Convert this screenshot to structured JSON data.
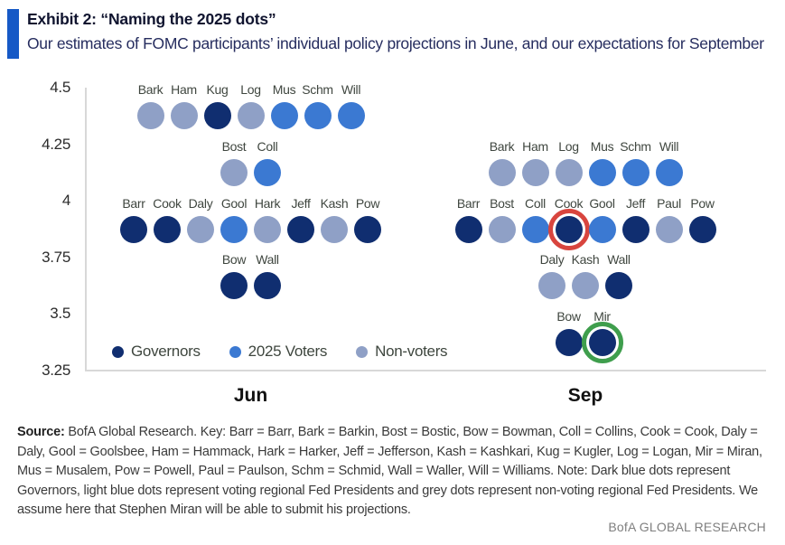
{
  "header": {
    "exhibit_title": "Exhibit 2: “Naming the 2025 dots”",
    "subtitle": "Our estimates of FOMC participants’ individual policy projections in June, and our expectations for September"
  },
  "chart_data": {
    "type": "scatter",
    "title": "Exhibit 2: “Naming the 2025 dots”",
    "ylabel": "",
    "xlabel": "",
    "ylim": [
      3.25,
      4.5
    ],
    "y_ticks": [
      {
        "value": 4.5,
        "label": "4.5"
      },
      {
        "value": 4.25,
        "label": "4.25"
      },
      {
        "value": 4,
        "label": "4"
      },
      {
        "value": 3.75,
        "label": "3.75"
      },
      {
        "value": 3.5,
        "label": "3.5"
      },
      {
        "value": 3.25,
        "label": "3.25"
      }
    ],
    "colors": {
      "governor": "#102e70",
      "voter": "#3b79d2",
      "nonvoter": "#8fa0c6",
      "ring_red": "#d8453e",
      "ring_green": "#3f9e4d"
    },
    "groups": [
      {
        "label": "Jun",
        "rows": [
          {
            "y": 4.375,
            "dots": [
              {
                "name": "Bark",
                "type": "nonvoter"
              },
              {
                "name": "Ham",
                "type": "nonvoter"
              },
              {
                "name": "Kug",
                "type": "governor"
              },
              {
                "name": "Log",
                "type": "nonvoter"
              },
              {
                "name": "Mus",
                "type": "voter"
              },
              {
                "name": "Schm",
                "type": "voter"
              },
              {
                "name": "Will",
                "type": "voter"
              }
            ]
          },
          {
            "y": 4.125,
            "dots": [
              {
                "name": "Bost",
                "type": "nonvoter"
              },
              {
                "name": "Coll",
                "type": "voter"
              }
            ]
          },
          {
            "y": 3.875,
            "dots": [
              {
                "name": "Barr",
                "type": "governor"
              },
              {
                "name": "Cook",
                "type": "governor"
              },
              {
                "name": "Daly",
                "type": "nonvoter"
              },
              {
                "name": "Gool",
                "type": "voter"
              },
              {
                "name": "Hark",
                "type": "nonvoter"
              },
              {
                "name": "Jeff",
                "type": "governor"
              },
              {
                "name": "Kash",
                "type": "nonvoter"
              },
              {
                "name": "Pow",
                "type": "governor"
              }
            ]
          },
          {
            "y": 3.625,
            "dots": [
              {
                "name": "Bow",
                "type": "governor"
              },
              {
                "name": "Wall",
                "type": "governor"
              }
            ]
          }
        ]
      },
      {
        "label": "Sep",
        "rows": [
          {
            "y": 4.125,
            "dots": [
              {
                "name": "Bark",
                "type": "nonvoter"
              },
              {
                "name": "Ham",
                "type": "nonvoter"
              },
              {
                "name": "Log",
                "type": "nonvoter"
              },
              {
                "name": "Mus",
                "type": "voter"
              },
              {
                "name": "Schm",
                "type": "voter"
              },
              {
                "name": "Will",
                "type": "voter"
              }
            ]
          },
          {
            "y": 3.875,
            "dots": [
              {
                "name": "Barr",
                "type": "governor"
              },
              {
                "name": "Bost",
                "type": "nonvoter"
              },
              {
                "name": "Coll",
                "type": "voter"
              },
              {
                "name": "Cook",
                "type": "governor",
                "ring": "red"
              },
              {
                "name": "Gool",
                "type": "voter"
              },
              {
                "name": "Jeff",
                "type": "governor"
              },
              {
                "name": "Paul",
                "type": "nonvoter"
              },
              {
                "name": "Pow",
                "type": "governor"
              }
            ]
          },
          {
            "y": 3.625,
            "dots": [
              {
                "name": "Daly",
                "type": "nonvoter"
              },
              {
                "name": "Kash",
                "type": "nonvoter"
              },
              {
                "name": "Wall",
                "type": "governor"
              }
            ]
          },
          {
            "y": 3.375,
            "dots": [
              {
                "name": "Bow",
                "type": "governor"
              },
              {
                "name": "Mir",
                "type": "governor",
                "ring": "green"
              }
            ]
          }
        ]
      }
    ],
    "legend": {
      "position": "bottom-left-inside",
      "items": [
        {
          "label": "Governors",
          "type": "governor"
        },
        {
          "label": "2025 Voters",
          "type": "voter"
        },
        {
          "label": "Non-voters",
          "type": "nonvoter"
        }
      ]
    },
    "grid": false
  },
  "footer": {
    "source_label": "Source:",
    "source_text": " BofA Global Research. Key: Barr = Barr, Bark = Barkin, Bost = Bostic, Bow = Bowman, Coll = Collins, Cook = Cook, Daly = Daly, Gool = Goolsbee, Ham = Hammack, Hark = Harker, Jeff = Jefferson, Kash = Kashkari, Kug = Kugler, Log = Logan, Mir = Miran, Mus = Musalem, Pow = Powell, Paul = Paulson, Schm = Schmid, Wall = Waller, Will = Williams. Note: Dark blue dots represent Governors, light blue dots represent voting regional Fed Presidents and grey dots represent non-voting regional Fed Presidents. We assume here that Stephen Miran will be able to submit his projections.",
    "brand": "BofA GLOBAL RESEARCH"
  }
}
